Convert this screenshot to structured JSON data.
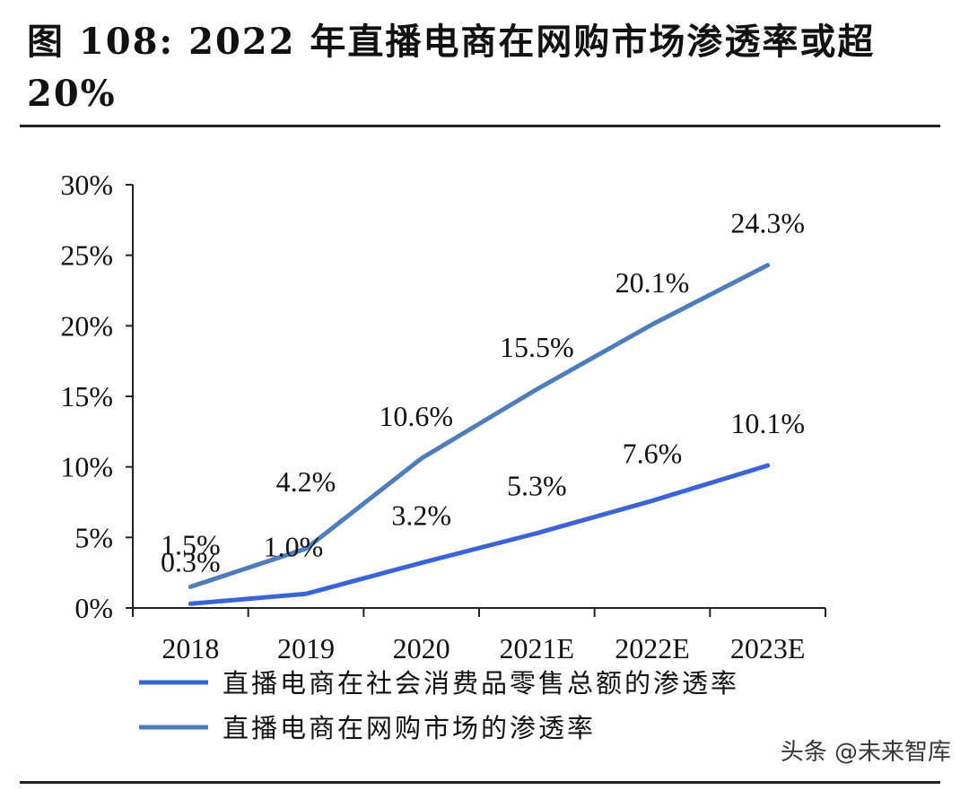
{
  "title": "图 108: 2022 年直播电商在网购市场渗透率或超 20%",
  "watermark": "头条 @未来智库",
  "colors": {
    "series_social": "#3a64d8",
    "series_online": "#4f7dbb",
    "axis": "#222222"
  },
  "chart_data": {
    "type": "line",
    "title": "2022 年直播电商在网购市场渗透率或超 20%",
    "categories": [
      "2018",
      "2019",
      "2020",
      "2021E",
      "2022E",
      "2023E"
    ],
    "yticks": [
      "0%",
      "5%",
      "10%",
      "15%",
      "20%",
      "25%",
      "30%"
    ],
    "ylim": [
      0,
      30
    ],
    "series": [
      {
        "name": "直播电商在社会消费品零售总额的渗透率",
        "values": [
          0.3,
          1.0,
          3.2,
          5.3,
          7.6,
          10.1
        ],
        "labels": [
          "0.3%",
          "1.0%",
          "3.2%",
          "5.3%",
          "7.6%",
          "10.1%"
        ]
      },
      {
        "name": "直播电商在网购市场的渗透率",
        "values": [
          1.5,
          4.2,
          10.6,
          15.5,
          20.1,
          24.3
        ],
        "labels": [
          "1.5%",
          "4.2%",
          "10.6%",
          "15.5%",
          "20.1%",
          "24.3%"
        ]
      }
    ],
    "legend": "bottom-left"
  }
}
